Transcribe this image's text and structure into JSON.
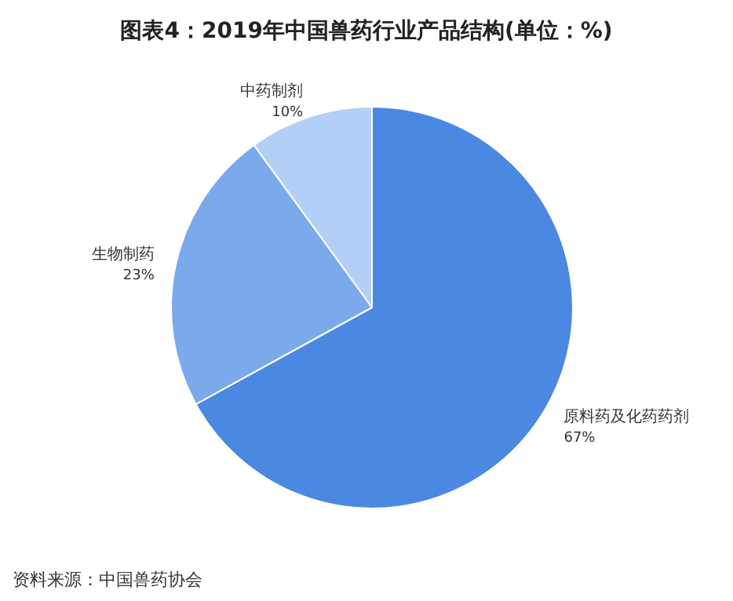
{
  "chart_data": {
    "type": "pie",
    "title": "图表4：2019年中国兽药行业产品结构(单位：%)",
    "categories": [
      "中药制剂",
      "生物制药",
      "原料药及化药药剂"
    ],
    "values": [
      10,
      23,
      67
    ],
    "colors": [
      "#b4cff5",
      "#7aaaec",
      "#4a88e2"
    ],
    "value_labels": [
      "10%",
      "23%",
      "67%"
    ],
    "annotations": [
      "资料来源：中国兽药协会"
    ]
  }
}
